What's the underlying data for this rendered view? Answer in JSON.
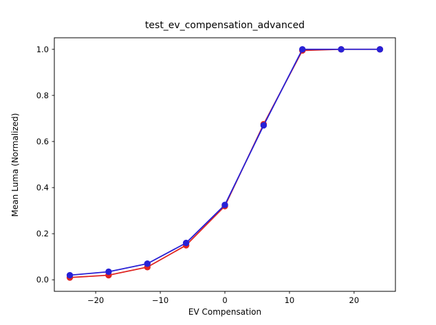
{
  "chart_data": {
    "type": "line",
    "title": "test_ev_compensation_advanced",
    "xlabel": "EV Compensation",
    "ylabel": "Mean Luma (Normalized)",
    "x": [
      -24,
      -18,
      -12,
      -6,
      0,
      6,
      12,
      18,
      24
    ],
    "series": [
      {
        "name": "red-series",
        "color": "#e02420",
        "values": [
          0.01,
          0.02,
          0.055,
          0.15,
          0.32,
          0.675,
          0.995,
          1.0,
          1.0
        ]
      },
      {
        "name": "blue-series",
        "color": "#2821d6",
        "values": [
          0.02,
          0.035,
          0.07,
          0.16,
          0.325,
          0.67,
          1.0,
          1.0,
          1.0
        ]
      }
    ],
    "xlim": [
      -26.4,
      26.4
    ],
    "ylim": [
      -0.05,
      1.05
    ],
    "xticks": [
      -20,
      -10,
      0,
      10,
      20
    ],
    "xtick_labels": [
      "−20",
      "−10",
      "0",
      "10",
      "20"
    ],
    "yticks": [
      0.0,
      0.2,
      0.4,
      0.6,
      0.8,
      1.0
    ],
    "ytick_labels": [
      "0.0",
      "0.2",
      "0.4",
      "0.6",
      "0.8",
      "1.0"
    ],
    "grid": false,
    "legend": false,
    "marker": "circle",
    "line_width": 1.8,
    "marker_radius": 4.7,
    "axis_color": "#000000",
    "background": "#ffffff"
  }
}
